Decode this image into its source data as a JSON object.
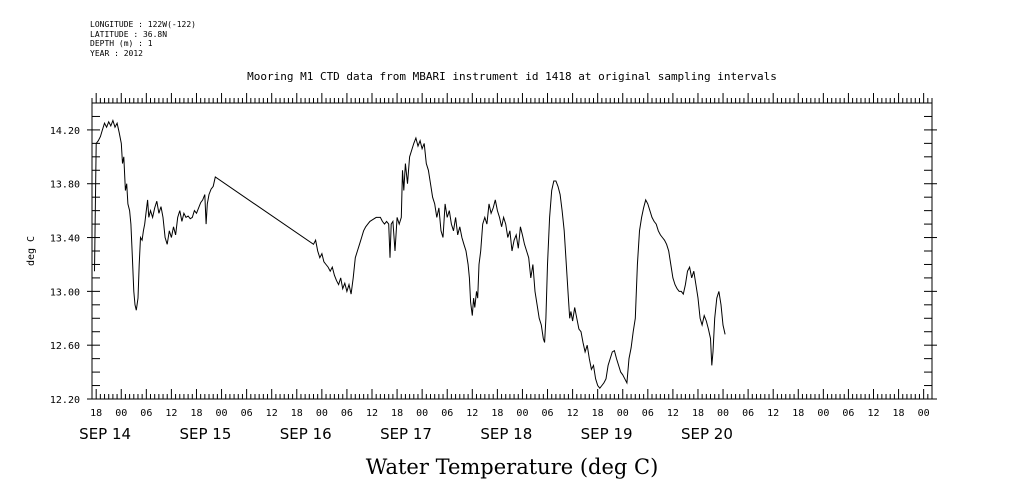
{
  "metadata": [
    {
      "label": "LONGITUDE",
      "value": "122W(-122)"
    },
    {
      "label": "LATITUDE",
      "value": "36.8N"
    },
    {
      "label": "DEPTH (m)",
      "value": "1"
    },
    {
      "label": "YEAR",
      "value": "2012"
    }
  ],
  "chart_data": {
    "type": "line",
    "title": "Mooring M1 CTD data from MBARI instrument id 1418 at original sampling intervals",
    "xlabel": "Water Temperature (deg C)",
    "ylabel": "deg C",
    "xlim": [
      -7,
      194
    ],
    "x_unit": "hours from 2012-09-14 00:00",
    "ylim": [
      12.2,
      14.4
    ],
    "yticks": [
      12.2,
      12.6,
      13.0,
      13.4,
      13.8,
      14.2
    ],
    "ytick_labels": [
      "12.20",
      "12.60",
      "13.00",
      "13.40",
      "13.80",
      "14.20"
    ],
    "xtick_labels": [
      {
        "x": -6,
        "label": "18"
      },
      {
        "x": 0,
        "label": "00"
      },
      {
        "x": 6,
        "label": "06"
      },
      {
        "x": 12,
        "label": "12"
      },
      {
        "x": 18,
        "label": "18"
      },
      {
        "x": 24,
        "label": "00"
      },
      {
        "x": 30,
        "label": "06"
      },
      {
        "x": 36,
        "label": "12"
      },
      {
        "x": 42,
        "label": "18"
      },
      {
        "x": 48,
        "label": "00"
      },
      {
        "x": 54,
        "label": "06"
      },
      {
        "x": 60,
        "label": "12"
      },
      {
        "x": 66,
        "label": "18"
      },
      {
        "x": 72,
        "label": "00"
      },
      {
        "x": 78,
        "label": "06"
      },
      {
        "x": 84,
        "label": "12"
      },
      {
        "x": 90,
        "label": "18"
      },
      {
        "x": 96,
        "label": "00"
      },
      {
        "x": 102,
        "label": "06"
      },
      {
        "x": 108,
        "label": "12"
      },
      {
        "x": 114,
        "label": "18"
      },
      {
        "x": 120,
        "label": "00"
      },
      {
        "x": 126,
        "label": "06"
      },
      {
        "x": 132,
        "label": "12"
      },
      {
        "x": 138,
        "label": "18"
      },
      {
        "x": 144,
        "label": "00"
      },
      {
        "x": 150,
        "label": "06"
      },
      {
        "x": 156,
        "label": "12"
      },
      {
        "x": 162,
        "label": "18"
      },
      {
        "x": 168,
        "label": "00"
      },
      {
        "x": 174,
        "label": "06"
      },
      {
        "x": 180,
        "label": "12"
      },
      {
        "x": 186,
        "label": "18"
      },
      {
        "x": 192,
        "label": "00"
      }
    ],
    "day_labels": [
      {
        "x": -6,
        "label": "SEP 14"
      },
      {
        "x": 18,
        "label": "SEP 15"
      },
      {
        "x": 42,
        "label": "SEP 16"
      },
      {
        "x": 66,
        "label": "SEP 17"
      },
      {
        "x": 90,
        "label": "SEP 18"
      },
      {
        "x": 114,
        "label": "SEP 19"
      },
      {
        "x": 138,
        "label": "SEP 20"
      }
    ],
    "series": [
      {
        "color": "#000000",
        "points": [
          [
            -6.4,
            13.15
          ],
          [
            -6.2,
            13.6
          ],
          [
            -6.0,
            14.1
          ],
          [
            -5.5,
            14.12
          ],
          [
            -5.0,
            14.15
          ],
          [
            -4.5,
            14.2
          ],
          [
            -4.0,
            14.25
          ],
          [
            -3.5,
            14.22
          ],
          [
            -3.0,
            14.26
          ],
          [
            -2.5,
            14.23
          ],
          [
            -2.0,
            14.27
          ],
          [
            -1.5,
            14.22
          ],
          [
            -1.0,
            14.25
          ],
          [
            -0.5,
            14.18
          ],
          [
            0.0,
            14.1
          ],
          [
            0.3,
            13.95
          ],
          [
            0.6,
            14.0
          ],
          [
            1.0,
            13.75
          ],
          [
            1.3,
            13.8
          ],
          [
            1.6,
            13.65
          ],
          [
            2.0,
            13.6
          ],
          [
            2.3,
            13.5
          ],
          [
            2.6,
            13.3
          ],
          [
            3.0,
            13.0
          ],
          [
            3.3,
            12.9
          ],
          [
            3.6,
            12.86
          ],
          [
            4.0,
            12.95
          ],
          [
            4.3,
            13.2
          ],
          [
            4.6,
            13.4
          ],
          [
            5.0,
            13.38
          ],
          [
            5.3,
            13.45
          ],
          [
            5.6,
            13.5
          ],
          [
            6.0,
            13.6
          ],
          [
            6.3,
            13.68
          ],
          [
            6.6,
            13.55
          ],
          [
            7.0,
            13.6
          ],
          [
            7.5,
            13.55
          ],
          [
            8.0,
            13.62
          ],
          [
            8.5,
            13.67
          ],
          [
            9.0,
            13.58
          ],
          [
            9.5,
            13.63
          ],
          [
            10.0,
            13.55
          ],
          [
            10.5,
            13.4
          ],
          [
            11.0,
            13.35
          ],
          [
            11.5,
            13.45
          ],
          [
            12.0,
            13.4
          ],
          [
            12.5,
            13.48
          ],
          [
            13.0,
            13.42
          ],
          [
            13.5,
            13.55
          ],
          [
            14.0,
            13.6
          ],
          [
            14.5,
            13.52
          ],
          [
            15.0,
            13.58
          ],
          [
            15.5,
            13.55
          ],
          [
            16.0,
            13.56
          ],
          [
            16.5,
            13.54
          ],
          [
            17.0,
            13.55
          ],
          [
            17.5,
            13.6
          ],
          [
            18.0,
            13.58
          ],
          [
            18.5,
            13.62
          ],
          [
            19.0,
            13.66
          ],
          [
            19.5,
            13.68
          ],
          [
            20.0,
            13.72
          ],
          [
            20.3,
            13.5
          ],
          [
            20.6,
            13.65
          ],
          [
            21.0,
            13.72
          ],
          [
            21.5,
            13.76
          ],
          [
            22.0,
            13.78
          ],
          [
            22.5,
            13.85
          ],
          [
            46.0,
            13.35
          ],
          [
            46.5,
            13.38
          ],
          [
            47.0,
            13.3
          ],
          [
            47.5,
            13.25
          ],
          [
            48.0,
            13.28
          ],
          [
            48.5,
            13.22
          ],
          [
            49.0,
            13.2
          ],
          [
            49.5,
            13.18
          ],
          [
            50.0,
            13.15
          ],
          [
            50.5,
            13.18
          ],
          [
            51.0,
            13.12
          ],
          [
            51.5,
            13.08
          ],
          [
            52.0,
            13.05
          ],
          [
            52.5,
            13.1
          ],
          [
            53.0,
            13.02
          ],
          [
            53.5,
            13.06
          ],
          [
            54.0,
            13.0
          ],
          [
            54.5,
            13.05
          ],
          [
            55.0,
            12.98
          ],
          [
            55.5,
            13.1
          ],
          [
            56.0,
            13.25
          ],
          [
            56.5,
            13.3
          ],
          [
            57.0,
            13.35
          ],
          [
            57.5,
            13.4
          ],
          [
            58.0,
            13.45
          ],
          [
            58.5,
            13.48
          ],
          [
            59.0,
            13.5
          ],
          [
            59.5,
            13.52
          ],
          [
            60.0,
            13.53
          ],
          [
            61.0,
            13.55
          ],
          [
            62.0,
            13.55
          ],
          [
            62.5,
            13.52
          ],
          [
            63.0,
            13.5
          ],
          [
            63.5,
            13.52
          ],
          [
            64.0,
            13.5
          ],
          [
            64.3,
            13.25
          ],
          [
            64.6,
            13.5
          ],
          [
            65.0,
            13.52
          ],
          [
            65.5,
            13.3
          ],
          [
            66.0,
            13.55
          ],
          [
            66.5,
            13.5
          ],
          [
            67.0,
            13.55
          ],
          [
            67.3,
            13.9
          ],
          [
            67.6,
            13.75
          ],
          [
            68.0,
            13.95
          ],
          [
            68.5,
            13.8
          ],
          [
            69.0,
            14.0
          ],
          [
            69.5,
            14.05
          ],
          [
            70.0,
            14.1
          ],
          [
            70.5,
            14.14
          ],
          [
            71.0,
            14.08
          ],
          [
            71.5,
            14.12
          ],
          [
            72.0,
            14.06
          ],
          [
            72.5,
            14.1
          ],
          [
            73.0,
            13.95
          ],
          [
            73.5,
            13.9
          ],
          [
            74.0,
            13.8
          ],
          [
            74.5,
            13.7
          ],
          [
            75.0,
            13.65
          ],
          [
            75.5,
            13.55
          ],
          [
            76.0,
            13.62
          ],
          [
            76.5,
            13.45
          ],
          [
            77.0,
            13.4
          ],
          [
            77.5,
            13.65
          ],
          [
            78.0,
            13.55
          ],
          [
            78.5,
            13.6
          ],
          [
            79.0,
            13.5
          ],
          [
            79.5,
            13.45
          ],
          [
            80.0,
            13.55
          ],
          [
            80.5,
            13.42
          ],
          [
            81.0,
            13.48
          ],
          [
            81.5,
            13.4
          ],
          [
            82.0,
            13.35
          ],
          [
            82.5,
            13.3
          ],
          [
            83.0,
            13.2
          ],
          [
            83.3,
            13.1
          ],
          [
            83.6,
            12.92
          ],
          [
            84.0,
            12.82
          ],
          [
            84.3,
            12.95
          ],
          [
            84.6,
            12.88
          ],
          [
            85.0,
            13.0
          ],
          [
            85.3,
            12.95
          ],
          [
            85.6,
            13.2
          ],
          [
            86.0,
            13.3
          ],
          [
            86.5,
            13.5
          ],
          [
            87.0,
            13.55
          ],
          [
            87.5,
            13.5
          ],
          [
            88.0,
            13.65
          ],
          [
            88.5,
            13.58
          ],
          [
            89.0,
            13.62
          ],
          [
            89.5,
            13.68
          ],
          [
            90.0,
            13.6
          ],
          [
            90.5,
            13.55
          ],
          [
            91.0,
            13.48
          ],
          [
            91.5,
            13.55
          ],
          [
            92.0,
            13.5
          ],
          [
            92.5,
            13.4
          ],
          [
            93.0,
            13.45
          ],
          [
            93.5,
            13.3
          ],
          [
            94.0,
            13.38
          ],
          [
            94.5,
            13.42
          ],
          [
            95.0,
            13.32
          ],
          [
            95.5,
            13.48
          ],
          [
            96.0,
            13.42
          ],
          [
            96.5,
            13.35
          ],
          [
            97.0,
            13.3
          ],
          [
            97.5,
            13.25
          ],
          [
            98.0,
            13.1
          ],
          [
            98.5,
            13.2
          ],
          [
            99.0,
            13.0
          ],
          [
            99.5,
            12.9
          ],
          [
            100.0,
            12.8
          ],
          [
            100.5,
            12.75
          ],
          [
            101.0,
            12.65
          ],
          [
            101.3,
            12.62
          ],
          [
            101.6,
            12.8
          ],
          [
            102.0,
            13.2
          ],
          [
            102.5,
            13.55
          ],
          [
            103.0,
            13.75
          ],
          [
            103.5,
            13.82
          ],
          [
            104.0,
            13.82
          ],
          [
            104.5,
            13.78
          ],
          [
            105.0,
            13.72
          ],
          [
            105.5,
            13.6
          ],
          [
            106.0,
            13.45
          ],
          [
            106.5,
            13.2
          ],
          [
            107.0,
            12.95
          ],
          [
            107.3,
            12.8
          ],
          [
            107.6,
            12.85
          ],
          [
            108.0,
            12.78
          ],
          [
            108.5,
            12.88
          ],
          [
            109.0,
            12.8
          ],
          [
            109.5,
            12.72
          ],
          [
            110.0,
            12.7
          ],
          [
            110.5,
            12.62
          ],
          [
            111.0,
            12.55
          ],
          [
            111.5,
            12.6
          ],
          [
            112.0,
            12.5
          ],
          [
            112.5,
            12.42
          ],
          [
            113.0,
            12.45
          ],
          [
            113.5,
            12.35
          ],
          [
            114.0,
            12.3
          ],
          [
            114.5,
            12.28
          ],
          [
            115.0,
            12.3
          ],
          [
            115.5,
            12.32
          ],
          [
            116.0,
            12.35
          ],
          [
            116.5,
            12.45
          ],
          [
            117.0,
            12.5
          ],
          [
            117.5,
            12.55
          ],
          [
            118.0,
            12.56
          ],
          [
            118.5,
            12.5
          ],
          [
            119.0,
            12.45
          ],
          [
            119.5,
            12.4
          ],
          [
            120.0,
            12.38
          ],
          [
            120.5,
            12.35
          ],
          [
            121.0,
            12.32
          ],
          [
            121.5,
            12.5
          ],
          [
            122.0,
            12.58
          ],
          [
            122.5,
            12.7
          ],
          [
            123.0,
            12.8
          ],
          [
            123.5,
            13.2
          ],
          [
            124.0,
            13.45
          ],
          [
            124.5,
            13.55
          ],
          [
            125.0,
            13.62
          ],
          [
            125.5,
            13.68
          ],
          [
            126.0,
            13.65
          ],
          [
            126.5,
            13.6
          ],
          [
            127.0,
            13.55
          ],
          [
            127.5,
            13.52
          ],
          [
            128.0,
            13.5
          ],
          [
            128.5,
            13.45
          ],
          [
            129.0,
            13.42
          ],
          [
            129.5,
            13.4
          ],
          [
            130.0,
            13.38
          ],
          [
            130.5,
            13.35
          ],
          [
            131.0,
            13.3
          ],
          [
            131.5,
            13.2
          ],
          [
            132.0,
            13.1
          ],
          [
            132.5,
            13.05
          ],
          [
            133.0,
            13.02
          ],
          [
            133.5,
            13.0
          ],
          [
            134.0,
            13.0
          ],
          [
            134.5,
            12.98
          ],
          [
            135.0,
            13.05
          ],
          [
            135.5,
            13.15
          ],
          [
            136.0,
            13.18
          ],
          [
            136.5,
            13.1
          ],
          [
            137.0,
            13.15
          ],
          [
            137.5,
            13.05
          ],
          [
            138.0,
            12.95
          ],
          [
            138.5,
            12.8
          ],
          [
            139.0,
            12.75
          ],
          [
            139.5,
            12.82
          ],
          [
            140.0,
            12.78
          ],
          [
            140.5,
            12.72
          ],
          [
            141.0,
            12.65
          ],
          [
            141.3,
            12.45
          ],
          [
            141.6,
            12.55
          ],
          [
            142.0,
            12.8
          ],
          [
            142.5,
            12.95
          ],
          [
            143.0,
            13.0
          ],
          [
            143.5,
            12.9
          ],
          [
            144.0,
            12.75
          ],
          [
            144.5,
            12.68
          ]
        ]
      }
    ]
  }
}
